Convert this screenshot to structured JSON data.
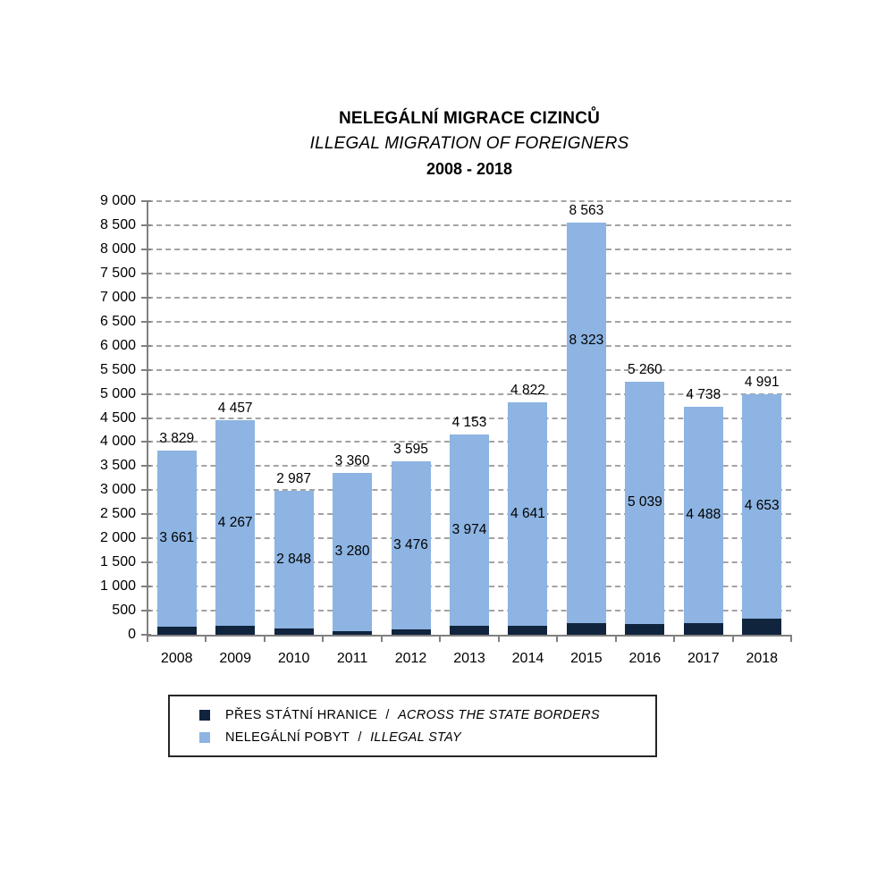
{
  "title": {
    "line1": "NELEGÁLNÍ MIGRACE CIZINCŮ",
    "line2": "ILLEGAL MIGRATION OF FOREIGNERS",
    "line3": "2008 - 2018"
  },
  "chart_data": {
    "type": "bar",
    "subtype": "stacked",
    "title": "NELEGÁLNÍ MIGRACE CIZINCŮ / ILLEGAL MIGRATION OF FOREIGNERS 2008 - 2018",
    "categories": [
      "2008",
      "2009",
      "2010",
      "2011",
      "2012",
      "2013",
      "2014",
      "2015",
      "2016",
      "2017",
      "2018"
    ],
    "series": [
      {
        "name": "PŘES STÁTNÍ HRANICE / ACROSS THE STATE BORDERS",
        "name_cs": "PŘES STÁTNÍ HRANICE",
        "name_en": "ACROSS THE STATE BORDERS",
        "color": "#10243E",
        "values": [
          168,
          190,
          139,
          80,
          119,
          179,
          181,
          240,
          221,
          250,
          338
        ],
        "labels_shown": false
      },
      {
        "name": "NELEGÁLNÍ POBYT / ILLEGAL STAY",
        "name_cs": "NELEGÁLNÍ POBYT",
        "name_en": "ILLEGAL STAY",
        "color": "#8DB4E2",
        "values": [
          3661,
          4267,
          2848,
          3280,
          3476,
          3974,
          4641,
          8323,
          5039,
          4488,
          4653
        ],
        "labels_shown": true
      }
    ],
    "totals": [
      3829,
      4457,
      2987,
      3360,
      3595,
      4153,
      4822,
      8563,
      5260,
      4738,
      4991
    ],
    "y_axis": {
      "min": 0,
      "max": 9000,
      "step": 500,
      "thousands_separator": " "
    },
    "grid": "horizontal-dashed",
    "gridline_color": "#A3A3A3",
    "axis_color": "#808080",
    "legend_position": "bottom",
    "legend_separator": "/"
  }
}
